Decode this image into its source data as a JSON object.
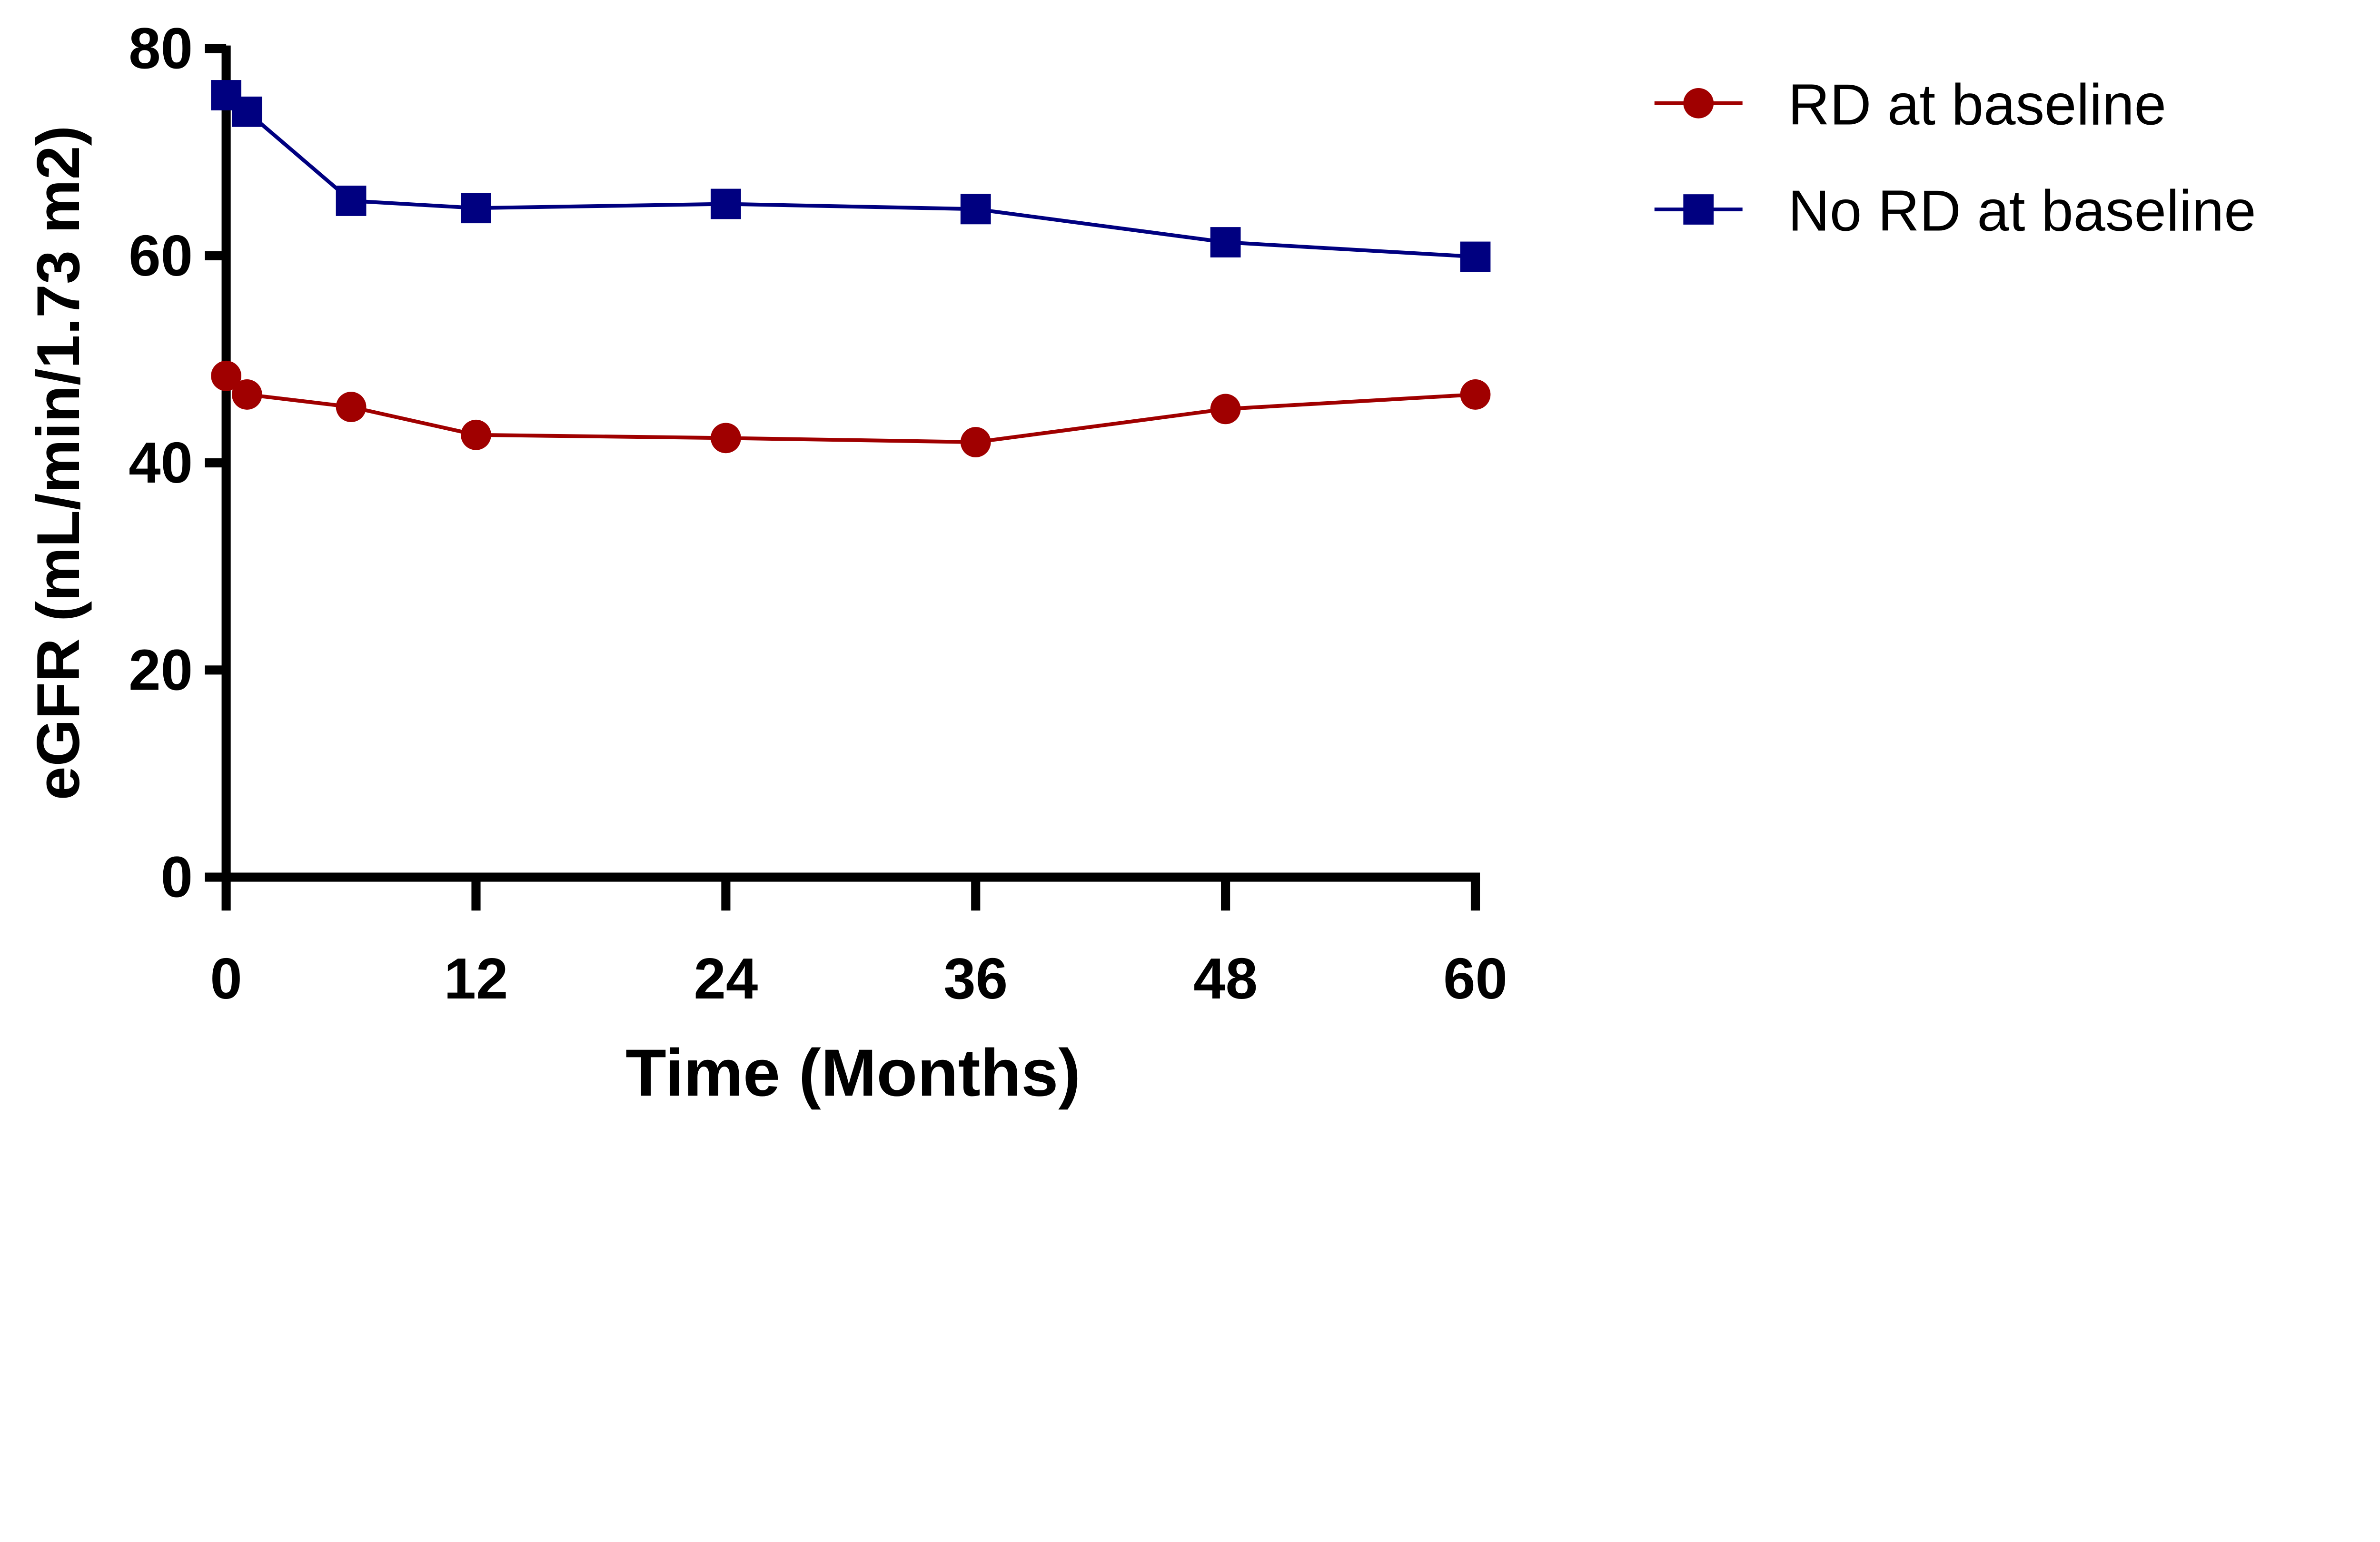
{
  "chart_data": {
    "type": "line",
    "title": "",
    "xlabel": "Time (Months)",
    "ylabel": "eGFR (mL/min/1.73 m2)",
    "xlim": [
      0,
      60
    ],
    "ylim": [
      0,
      80
    ],
    "xticks": [
      0,
      12,
      24,
      36,
      48,
      60
    ],
    "yticks": [
      0,
      20,
      40,
      60,
      80
    ],
    "grid": false,
    "legend_position": "right",
    "series": [
      {
        "name": "RD at baseline",
        "color": "#a00000",
        "marker": "circle",
        "x": [
          0,
          1,
          6,
          12,
          24,
          36,
          48,
          60
        ],
        "y": [
          48.4,
          46.6,
          45.4,
          42.7,
          42.4,
          42.0,
          45.2,
          46.6
        ]
      },
      {
        "name": "No RD at baseline",
        "color": "#000080",
        "marker": "square",
        "x": [
          0,
          1,
          6,
          12,
          24,
          36,
          48,
          60
        ],
        "y": [
          75.5,
          73.9,
          65.3,
          64.6,
          65.0,
          64.5,
          61.3,
          59.9
        ]
      }
    ]
  }
}
